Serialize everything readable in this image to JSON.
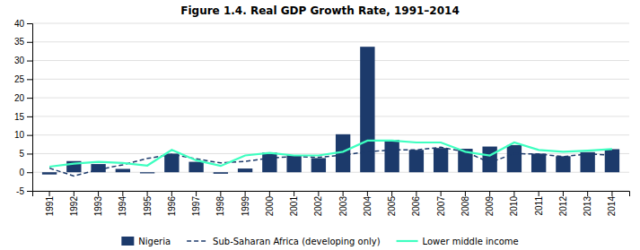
{
  "chart_data": {
    "type": "bar",
    "title": "Figure 1.4. Real GDP Growth Rate, 1991–2014",
    "categories": [
      "1991",
      "1992",
      "1993",
      "1994",
      "1995",
      "1996",
      "1997",
      "1998",
      "1999",
      "2000",
      "2001",
      "2002",
      "2003",
      "2004",
      "2005",
      "2006",
      "2007",
      "2008",
      "2009",
      "2010",
      "2011",
      "2012",
      "2013",
      "2014"
    ],
    "series": [
      {
        "name": "Nigeria",
        "type": "bar",
        "color": "#1c3a6b",
        "values": [
          -0.6,
          3.0,
          2.2,
          0.9,
          -0.3,
          5.0,
          2.8,
          -0.4,
          1.0,
          5.3,
          4.6,
          3.8,
          10.2,
          33.7,
          8.7,
          6.0,
          6.5,
          6.3,
          6.9,
          7.3,
          5.0,
          4.3,
          5.4,
          6.2
        ]
      },
      {
        "name": "Sub-Saharan Africa (developing only)",
        "type": "line",
        "color": "#1c3a6b",
        "line_style": "dashed",
        "values": [
          1.1,
          -1.0,
          0.7,
          2.0,
          3.7,
          4.8,
          3.6,
          2.5,
          2.9,
          3.8,
          4.2,
          4.0,
          4.6,
          5.5,
          6.0,
          6.0,
          6.7,
          5.5,
          2.6,
          5.0,
          4.9,
          4.2,
          4.9,
          4.6
        ]
      },
      {
        "name": "Lower middle income",
        "type": "line",
        "color": "#3effc0",
        "line_style": "solid",
        "values": [
          1.5,
          2.3,
          2.8,
          2.5,
          1.8,
          6.0,
          3.2,
          1.7,
          4.5,
          5.2,
          4.5,
          4.5,
          5.5,
          8.5,
          8.5,
          8.0,
          8.0,
          5.5,
          4.5,
          8.0,
          6.0,
          5.5,
          5.8,
          6.2
        ]
      }
    ],
    "ylim": [
      -5,
      40
    ],
    "yticks": [
      -5,
      0,
      5,
      10,
      15,
      20,
      25,
      30,
      35,
      40
    ],
    "grid": true,
    "legend": "bottom"
  }
}
